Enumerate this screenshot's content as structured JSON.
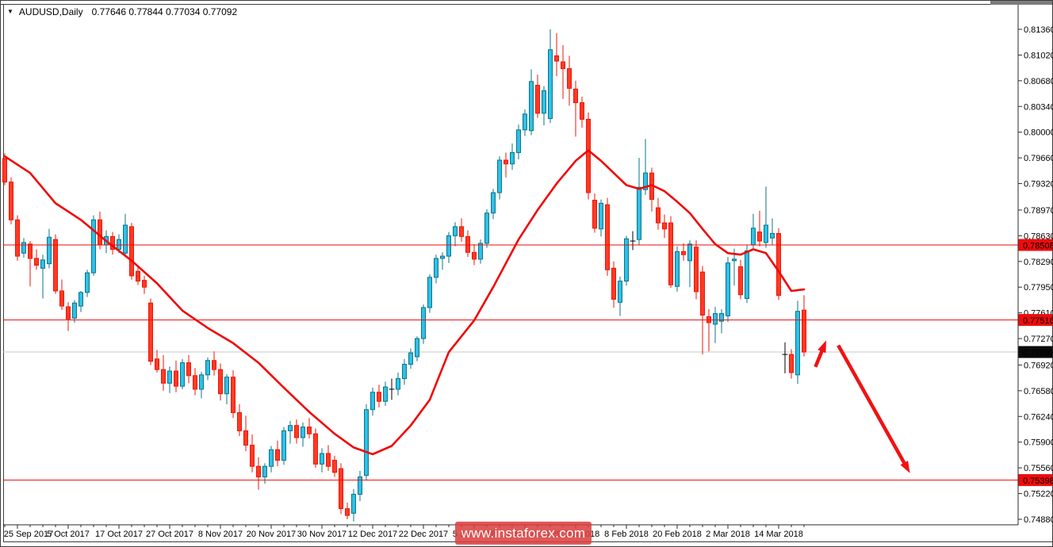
{
  "window": {
    "dropdown_icon": "▼",
    "symbol_period": "AUDUSD,Daily",
    "ohlc_values": "0.77646 0.77844 0.77034 0.77092"
  },
  "watermark": {
    "text": "www.instaforex.com"
  },
  "chart_data": {
    "type": "candlestick",
    "title": "AUDUSD, Daily",
    "xlabel": "",
    "ylabel": "",
    "grid": "off",
    "legend": "none",
    "ylim": [
      0.7488,
      0.8136
    ],
    "y_ticks": [
      "0.81360",
      "0.81020",
      "0.80680",
      "0.80340",
      "0.80000",
      "0.79660",
      "0.79320",
      "0.78970",
      "0.78630",
      "0.78290",
      "0.77950",
      "0.77610",
      "0.77270",
      "0.76920",
      "0.76580",
      "0.76240",
      "0.75900",
      "0.75560",
      "0.75220",
      "0.74880"
    ],
    "x_labels": [
      {
        "index": 2,
        "label": "25 Sep 2017"
      },
      {
        "index": 10,
        "label": "5 Oct 2017"
      },
      {
        "index": 18,
        "label": "17 Oct 2017"
      },
      {
        "index": 26,
        "label": "27 Oct 2017"
      },
      {
        "index": 34,
        "label": "8 Nov 2017"
      },
      {
        "index": 42,
        "label": "20 Nov 2017"
      },
      {
        "index": 50,
        "label": "30 Nov 2017"
      },
      {
        "index": 58,
        "label": "12 Dec 2017"
      },
      {
        "index": 66,
        "label": "22 Dec 2017"
      },
      {
        "index": 74,
        "label": "5 Jan 2018"
      },
      {
        "index": 82,
        "label": "17 Jan 2018"
      },
      {
        "index": 90,
        "label": "29 Jan 2018"
      },
      {
        "index": 98,
        "label": "8 Feb 2018"
      },
      {
        "index": 106,
        "label": "20 Feb 2018"
      },
      {
        "index": 114,
        "label": "2 Mar 2018"
      },
      {
        "index": 122,
        "label": "14 Mar 2018"
      }
    ],
    "last_bar_ohlc": {
      "open": "0.77646",
      "high": "0.77844",
      "low": "0.77034",
      "close": "0.77092"
    },
    "price_marker": {
      "price": 0.77092,
      "label": "0.77092",
      "bg": "#0a0a0a",
      "fg": "#ffffff",
      "line_color": "#c9c9c9"
    },
    "hlines": [
      {
        "price": 0.78508,
        "label": "0.78508"
      },
      {
        "price": 0.77516,
        "label": "0.77516"
      },
      {
        "price": 0.75398,
        "label": "0.75398"
      }
    ],
    "hline_color": "#ee0c0c",
    "tag_fg": "#ffffff",
    "axis_color": "#2b2b2b",
    "candle_colors": {
      "up_fill": "#2fc0e8",
      "up_edge": "#0a7586",
      "down_fill": "#ff3a26",
      "down_edge": "#ef1505",
      "doji": "#000000"
    },
    "candles": [
      [
        0.7965,
        0.7972,
        0.793,
        0.7934
      ],
      [
        0.7934,
        0.794,
        0.7878,
        0.7884
      ],
      [
        0.7884,
        0.789,
        0.783,
        0.7836
      ],
      [
        0.784,
        0.786,
        0.7834,
        0.7854
      ],
      [
        0.7852,
        0.7856,
        0.7796,
        0.7833
      ],
      [
        0.7833,
        0.7845,
        0.7818,
        0.7824
      ],
      [
        0.782,
        0.7838,
        0.778,
        0.7831
      ],
      [
        0.7826,
        0.7872,
        0.782,
        0.7861
      ],
      [
        0.7858,
        0.7865,
        0.7786,
        0.779
      ],
      [
        0.779,
        0.7805,
        0.7765,
        0.777
      ],
      [
        0.7769,
        0.7775,
        0.7737,
        0.7753
      ],
      [
        0.7754,
        0.7778,
        0.7748,
        0.7774
      ],
      [
        0.777,
        0.779,
        0.7762,
        0.7788
      ],
      [
        0.7788,
        0.7818,
        0.7782,
        0.7814
      ],
      [
        0.7814,
        0.789,
        0.781,
        0.7884
      ],
      [
        0.7884,
        0.7895,
        0.7845,
        0.7851
      ],
      [
        0.7851,
        0.787,
        0.784,
        0.7862
      ],
      [
        0.7862,
        0.7868,
        0.7838,
        0.7845
      ],
      [
        0.7845,
        0.7865,
        0.784,
        0.7858
      ],
      [
        0.784,
        0.7892,
        0.7836,
        0.7877
      ],
      [
        0.7875,
        0.788,
        0.7805,
        0.781
      ],
      [
        0.7816,
        0.7822,
        0.7798,
        0.7803
      ],
      [
        0.7804,
        0.781,
        0.7786,
        0.7795
      ],
      [
        0.7774,
        0.778,
        0.7692,
        0.7697
      ],
      [
        0.77,
        0.7712,
        0.7682,
        0.7686
      ],
      [
        0.7686,
        0.7705,
        0.7658,
        0.7668
      ],
      [
        0.7668,
        0.769,
        0.7655,
        0.7684
      ],
      [
        0.7684,
        0.7698,
        0.7656,
        0.7664
      ],
      [
        0.7664,
        0.77,
        0.766,
        0.7695
      ],
      [
        0.7695,
        0.7705,
        0.7668,
        0.7678
      ],
      [
        0.7678,
        0.7688,
        0.7652,
        0.766
      ],
      [
        0.766,
        0.7683,
        0.7648,
        0.7679
      ],
      [
        0.7679,
        0.7702,
        0.7672,
        0.7698
      ],
      [
        0.7698,
        0.771,
        0.7678,
        0.7686
      ],
      [
        0.7686,
        0.7694,
        0.7645,
        0.7654
      ],
      [
        0.7654,
        0.768,
        0.764,
        0.7676
      ],
      [
        0.7676,
        0.7685,
        0.7622,
        0.7629
      ],
      [
        0.7629,
        0.764,
        0.7598,
        0.7605
      ],
      [
        0.7605,
        0.7625,
        0.7578,
        0.7586
      ],
      [
        0.7586,
        0.76,
        0.755,
        0.7558
      ],
      [
        0.7558,
        0.757,
        0.7527,
        0.7544
      ],
      [
        0.7544,
        0.7562,
        0.7535,
        0.7558
      ],
      [
        0.7558,
        0.7585,
        0.755,
        0.758
      ],
      [
        0.758,
        0.7592,
        0.7558,
        0.7566
      ],
      [
        0.7566,
        0.761,
        0.756,
        0.7605
      ],
      [
        0.7605,
        0.7618,
        0.7588,
        0.7612
      ],
      [
        0.7612,
        0.762,
        0.7588,
        0.7596
      ],
      [
        0.7596,
        0.7616,
        0.7584,
        0.761
      ],
      [
        0.761,
        0.7622,
        0.7595,
        0.7601
      ],
      [
        0.7601,
        0.7608,
        0.7556,
        0.7561
      ],
      [
        0.7561,
        0.7582,
        0.755,
        0.7575
      ],
      [
        0.7575,
        0.7586,
        0.7552,
        0.7558
      ],
      [
        0.7566,
        0.7572,
        0.7544,
        0.755
      ],
      [
        0.7555,
        0.7562,
        0.7495,
        0.7502
      ],
      [
        0.7502,
        0.751,
        0.7488,
        0.7493
      ],
      [
        0.7496,
        0.7528,
        0.7485,
        0.7521
      ],
      [
        0.7521,
        0.7552,
        0.7512,
        0.7544
      ],
      [
        0.7546,
        0.764,
        0.754,
        0.7633
      ],
      [
        0.7633,
        0.7662,
        0.7625,
        0.7656
      ],
      [
        0.7656,
        0.7666,
        0.7636,
        0.7644
      ],
      [
        0.7644,
        0.767,
        0.7638,
        0.7663
      ],
      [
        0.766,
        0.7674,
        0.7646,
        0.766
      ],
      [
        0.766,
        0.7682,
        0.7652,
        0.7674
      ],
      [
        0.7674,
        0.77,
        0.7666,
        0.7693
      ],
      [
        0.7693,
        0.7714,
        0.7687,
        0.7708
      ],
      [
        0.7703,
        0.773,
        0.7697,
        0.7727
      ],
      [
        0.7727,
        0.7772,
        0.772,
        0.7768
      ],
      [
        0.7768,
        0.7812,
        0.7761,
        0.7808
      ],
      [
        0.7808,
        0.7838,
        0.78,
        0.7833
      ],
      [
        0.7833,
        0.7841,
        0.7818,
        0.7836
      ],
      [
        0.7836,
        0.7868,
        0.7827,
        0.7863
      ],
      [
        0.7863,
        0.7881,
        0.7849,
        0.7875
      ],
      [
        0.7875,
        0.7886,
        0.7855,
        0.7862
      ],
      [
        0.7862,
        0.787,
        0.7835,
        0.7841
      ],
      [
        0.7841,
        0.7852,
        0.7824,
        0.7832
      ],
      [
        0.7832,
        0.7858,
        0.7826,
        0.7853
      ],
      [
        0.7853,
        0.7898,
        0.7847,
        0.7893
      ],
      [
        0.7893,
        0.7925,
        0.7885,
        0.792
      ],
      [
        0.792,
        0.7968,
        0.7911,
        0.7963
      ],
      [
        0.7963,
        0.7973,
        0.794,
        0.7958
      ],
      [
        0.7958,
        0.7985,
        0.795,
        0.7973
      ],
      [
        0.7973,
        0.801,
        0.7964,
        0.8003
      ],
      [
        0.8003,
        0.803,
        0.7995,
        0.8024
      ],
      [
        0.8002,
        0.8083,
        0.7996,
        0.8067
      ],
      [
        0.8062,
        0.8076,
        0.8019,
        0.8025
      ],
      [
        0.8025,
        0.8061,
        0.8009,
        0.8055
      ],
      [
        0.8018,
        0.8136,
        0.8012,
        0.8109
      ],
      [
        0.8101,
        0.8131,
        0.8074,
        0.8094
      ],
      [
        0.8093,
        0.8115,
        0.8044,
        0.8084
      ],
      [
        0.8084,
        0.8101,
        0.8035,
        0.8058
      ],
      [
        0.8057,
        0.8068,
        0.7994,
        0.8039
      ],
      [
        0.8039,
        0.8047,
        0.8006,
        0.8017
      ],
      [
        0.8017,
        0.8026,
        0.7911,
        0.792
      ],
      [
        0.791,
        0.7919,
        0.7867,
        0.7873
      ],
      [
        0.7872,
        0.7911,
        0.7862,
        0.7906
      ],
      [
        0.7904,
        0.7913,
        0.781,
        0.7818
      ],
      [
        0.782,
        0.7829,
        0.7768,
        0.7779
      ],
      [
        0.7775,
        0.7809,
        0.7757,
        0.7803
      ],
      [
        0.7803,
        0.7863,
        0.7797,
        0.7859
      ],
      [
        0.7856,
        0.7869,
        0.7844,
        0.7856
      ],
      [
        0.7858,
        0.7966,
        0.7851,
        0.7927
      ],
      [
        0.7924,
        0.7991,
        0.7917,
        0.7946
      ],
      [
        0.7946,
        0.7953,
        0.7895,
        0.7911
      ],
      [
        0.79,
        0.7913,
        0.7871,
        0.788
      ],
      [
        0.788,
        0.7891,
        0.786,
        0.7872
      ],
      [
        0.788,
        0.7889,
        0.7794,
        0.7798
      ],
      [
        0.7796,
        0.7849,
        0.7789,
        0.7842
      ],
      [
        0.7842,
        0.7853,
        0.783,
        0.7838
      ],
      [
        0.783,
        0.7857,
        0.7795,
        0.7852
      ],
      [
        0.7848,
        0.7857,
        0.7779,
        0.7789
      ],
      [
        0.7815,
        0.7823,
        0.7706,
        0.7758
      ],
      [
        0.7756,
        0.7766,
        0.771,
        0.7748
      ],
      [
        0.7746,
        0.7769,
        0.7721,
        0.776
      ],
      [
        0.775,
        0.7766,
        0.7734,
        0.776
      ],
      [
        0.7757,
        0.7835,
        0.7749,
        0.7827
      ],
      [
        0.783,
        0.7846,
        0.7797,
        0.7832
      ],
      [
        0.7822,
        0.7831,
        0.7779,
        0.7785
      ],
      [
        0.778,
        0.7851,
        0.7774,
        0.7843
      ],
      [
        0.7851,
        0.7892,
        0.7844,
        0.7873
      ],
      [
        0.7868,
        0.7896,
        0.7849,
        0.7856
      ],
      [
        0.7854,
        0.7928,
        0.7847,
        0.7877
      ],
      [
        0.786,
        0.7886,
        0.7851,
        0.7866
      ],
      [
        0.7866,
        0.7873,
        0.7778,
        0.7784
      ],
      [
        0.7706,
        0.7722,
        0.7681,
        0.7706
      ],
      [
        0.7706,
        0.7713,
        0.7674,
        0.7682
      ],
      [
        0.7679,
        0.7777,
        0.7667,
        0.7763
      ],
      [
        0.77646,
        0.77844,
        0.77034,
        0.77092
      ]
    ],
    "ma_line": {
      "color": "#f00707",
      "width": 2.6,
      "points": [
        [
          0,
          0.7968
        ],
        [
          4,
          0.7946
        ],
        [
          8,
          0.7906
        ],
        [
          12,
          0.7884
        ],
        [
          16,
          0.7856
        ],
        [
          20,
          0.783
        ],
        [
          24,
          0.78
        ],
        [
          28,
          0.7764
        ],
        [
          32,
          0.7741
        ],
        [
          36,
          0.7721
        ],
        [
          40,
          0.7695
        ],
        [
          44,
          0.7662
        ],
        [
          48,
          0.763
        ],
        [
          52,
          0.7601
        ],
        [
          55,
          0.7583
        ],
        [
          58,
          0.7574
        ],
        [
          61,
          0.7585
        ],
        [
          64,
          0.7612
        ],
        [
          67,
          0.7646
        ],
        [
          70,
          0.7709
        ],
        [
          74,
          0.7751
        ],
        [
          77,
          0.7795
        ],
        [
          81,
          0.7858
        ],
        [
          84,
          0.7897
        ],
        [
          87,
          0.7932
        ],
        [
          90,
          0.7962
        ],
        [
          92,
          0.7976
        ],
        [
          94,
          0.7962
        ],
        [
          96,
          0.7946
        ],
        [
          98,
          0.793
        ],
        [
          100,
          0.7925
        ],
        [
          102,
          0.793
        ],
        [
          104,
          0.7922
        ],
        [
          106,
          0.7908
        ],
        [
          108,
          0.7893
        ],
        [
          110,
          0.7872
        ],
        [
          112,
          0.7852
        ],
        [
          114,
          0.784
        ],
        [
          116,
          0.7838
        ],
        [
          118,
          0.7845
        ],
        [
          120,
          0.784
        ],
        [
          122,
          0.7816
        ],
        [
          124,
          0.779
        ],
        [
          126,
          0.7792
        ]
      ]
    },
    "arrows": {
      "color": "#f01212",
      "width": 4.5,
      "items": [
        {
          "from": [
            127.8,
            0.76895
          ],
          "to": [
            129.5,
            0.77245
          ]
        },
        {
          "from": [
            131.4,
            0.7718
          ],
          "to": [
            142.7,
            0.7549
          ]
        }
      ]
    }
  }
}
